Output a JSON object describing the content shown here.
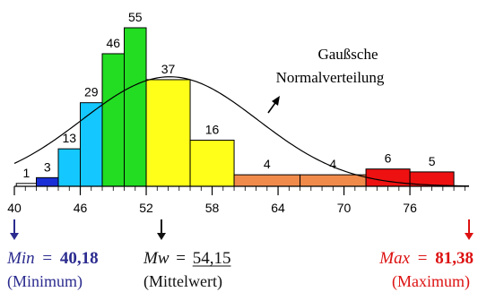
{
  "chart_data": {
    "type": "bar",
    "title": "",
    "xlabel": "",
    "ylabel": "",
    "x_ticks": [
      40,
      46,
      52,
      58,
      64,
      70,
      76
    ],
    "xlim": [
      40,
      81.38
    ],
    "ylim": [
      0,
      55
    ],
    "grid": false,
    "bins": [
      {
        "x0": 40.18,
        "x1": 42.0,
        "value": 1,
        "color": "#ffffff"
      },
      {
        "x0": 42.0,
        "x1": 44.0,
        "value": 3,
        "color": "#1a2fd6"
      },
      {
        "x0": 44.0,
        "x1": 46.0,
        "value": 13,
        "color": "#14c8ff"
      },
      {
        "x0": 46.0,
        "x1": 48.0,
        "value": 29,
        "color": "#14c8ff"
      },
      {
        "x0": 48.0,
        "x1": 50.0,
        "value": 46,
        "color": "#22dd22"
      },
      {
        "x0": 50.0,
        "x1": 52.0,
        "value": 55,
        "color": "#22dd22"
      },
      {
        "x0": 52.0,
        "x1": 56.0,
        "value": 37,
        "color": "#ffff1a"
      },
      {
        "x0": 56.0,
        "x1": 60.0,
        "value": 16,
        "color": "#ffff1a"
      },
      {
        "x0": 60.0,
        "x1": 66.0,
        "value": 4,
        "color": "#f08a4b"
      },
      {
        "x0": 66.0,
        "x1": 72.0,
        "value": 4,
        "color": "#f08a4b"
      },
      {
        "x0": 72.0,
        "x1": 76.0,
        "value": 6,
        "color": "#ee1111"
      },
      {
        "x0": 76.0,
        "x1": 80.0,
        "value": 5,
        "color": "#ee1111"
      }
    ],
    "curve": {
      "label_lines": [
        "Gaußsche",
        "Normalverteilung"
      ],
      "mean": 54.15,
      "sd": 8.0,
      "peak": 38
    },
    "annotations": {
      "min": {
        "symbol": "Min",
        "equals": "=",
        "value": "40,18",
        "note": "(Minimum)",
        "color": "#2b2b8f"
      },
      "mean": {
        "symbol": "Mw",
        "equals": "=",
        "value": "54,15",
        "note": "(Mittelwert)",
        "color": "#111111"
      },
      "max": {
        "symbol": "Max",
        "equals": "=",
        "value": "81,38",
        "note": "(Maximum)",
        "color": "#dd1111"
      }
    }
  }
}
